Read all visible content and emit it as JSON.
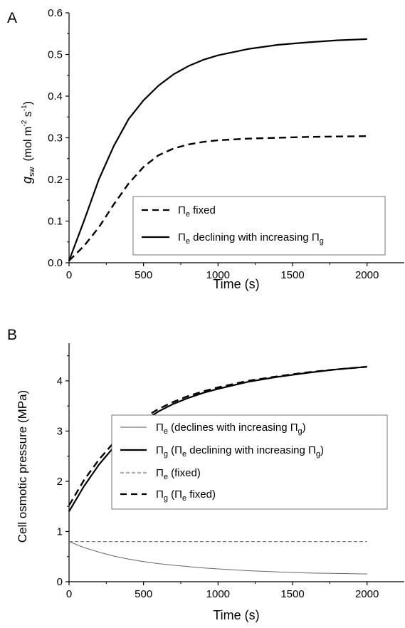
{
  "chart_data": [
    {
      "panel_label": "A",
      "type": "line",
      "xlabel": "Time  (s)",
      "ylabel": "g",
      "ylabel_sub": "sw",
      "ylabel_units": "(mol m",
      "ylabel_sup1": "-2",
      "ylabel_units2": " s",
      "ylabel_sup2": "-1",
      "ylabel_units3": ")",
      "xlim": [
        0,
        2250
      ],
      "ylim": [
        0,
        0.6
      ],
      "xticks": [
        "0",
        "500",
        "1000",
        "1500",
        "2000"
      ],
      "yticks": [
        "0.0",
        "0.1",
        "0.2",
        "0.3",
        "0.4",
        "0.5",
        "0.6"
      ],
      "xtick_values": [
        0,
        500,
        1000,
        1500,
        2000
      ],
      "ytick_values": [
        0,
        0.1,
        0.2,
        0.3,
        0.4,
        0.5,
        0.6
      ],
      "legend_placement": "lower-right",
      "series": [
        {
          "legend_main": "Π",
          "legend_sub": "e",
          "legend_rest": " fixed",
          "legend_sub2": "",
          "style": "thick-dashed",
          "x": [
            0,
            100,
            200,
            300,
            400,
            500,
            600,
            700,
            800,
            900,
            1000,
            1200,
            1400,
            1600,
            1800,
            2000
          ],
          "y": [
            0.005,
            0.04,
            0.085,
            0.14,
            0.19,
            0.23,
            0.258,
            0.274,
            0.284,
            0.29,
            0.294,
            0.298,
            0.3,
            0.302,
            0.303,
            0.304
          ]
        },
        {
          "legend_main": "Π",
          "legend_sub": "e",
          "legend_rest": " declining with increasing  Π",
          "legend_sub2": "g",
          "style": "thick-solid",
          "x": [
            0,
            100,
            200,
            300,
            400,
            500,
            600,
            700,
            800,
            900,
            1000,
            1200,
            1400,
            1600,
            1800,
            2000
          ],
          "y": [
            0.005,
            0.1,
            0.2,
            0.28,
            0.345,
            0.39,
            0.425,
            0.452,
            0.472,
            0.487,
            0.498,
            0.513,
            0.523,
            0.529,
            0.534,
            0.537
          ]
        }
      ]
    },
    {
      "panel_label": "B",
      "type": "line",
      "xlabel": "Time  (s)",
      "ylabel": "Cell osmotic pressure  (MPa)",
      "xlim": [
        0,
        2250
      ],
      "ylim": [
        0,
        4.75
      ],
      "xticks": [
        "0",
        "500",
        "1000",
        "1500",
        "2000"
      ],
      "yticks": [
        "0",
        "1",
        "2",
        "3",
        "4"
      ],
      "xtick_values": [
        0,
        500,
        1000,
        1500,
        2000
      ],
      "ytick_values": [
        0,
        1,
        2,
        3,
        4
      ],
      "legend_placement": "center-right",
      "series": [
        {
          "legend_main": "Π",
          "legend_sub": "e",
          "legend_rest": " (declines with increasing  Π",
          "legend_sub2": "g",
          "legend_tail": ")",
          "style": "thin-solid",
          "x": [
            0,
            100,
            200,
            300,
            400,
            500,
            600,
            700,
            800,
            900,
            1000,
            1200,
            1400,
            1600,
            1800,
            2000
          ],
          "y": [
            0.8,
            0.68,
            0.59,
            0.51,
            0.45,
            0.4,
            0.36,
            0.33,
            0.3,
            0.275,
            0.255,
            0.22,
            0.195,
            0.175,
            0.165,
            0.155
          ]
        },
        {
          "legend_main": "Π",
          "legend_sub": "g",
          "legend_rest": " (Π",
          "legend_sub2": "e",
          "legend_tail": " declining with increasing  Π",
          "legend_sub3": "g",
          "legend_tail2": ")",
          "style": "thick-solid",
          "x": [
            0,
            100,
            200,
            300,
            400,
            500,
            600,
            700,
            800,
            900,
            1000,
            1200,
            1400,
            1600,
            1800,
            2000
          ],
          "y": [
            1.4,
            1.9,
            2.33,
            2.68,
            2.97,
            3.2,
            3.39,
            3.54,
            3.66,
            3.76,
            3.84,
            3.98,
            4.08,
            4.16,
            4.23,
            4.28
          ]
        },
        {
          "legend_main": "Π",
          "legend_sub": "e",
          "legend_rest": " (fixed)",
          "legend_sub2": "",
          "legend_tail": "",
          "style": "thin-dashed",
          "x": [
            0,
            2000
          ],
          "y": [
            0.8,
            0.8
          ]
        },
        {
          "legend_main": "Π",
          "legend_sub": "g",
          "legend_rest": " (Π",
          "legend_sub2": "e",
          "legend_tail": " fixed)",
          "style": "thick-dashed",
          "x": [
            0,
            100,
            200,
            300,
            400,
            500,
            600,
            700,
            800,
            900,
            1000,
            1200,
            1400,
            1600,
            1800,
            2000
          ],
          "y": [
            1.52,
            2.02,
            2.43,
            2.77,
            3.04,
            3.26,
            3.44,
            3.58,
            3.7,
            3.79,
            3.87,
            4.0,
            4.09,
            4.17,
            4.23,
            4.28
          ]
        }
      ]
    }
  ]
}
